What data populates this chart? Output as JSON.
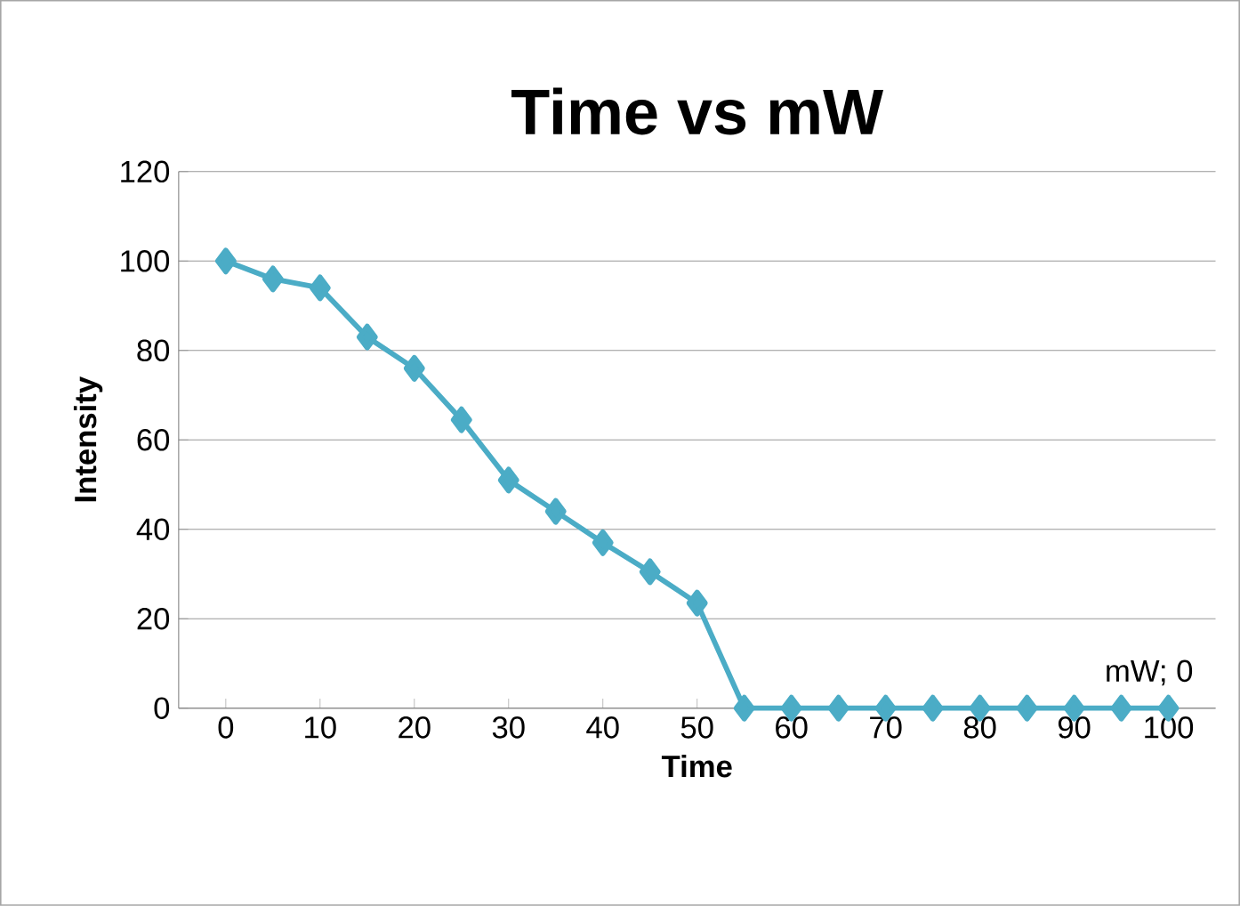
{
  "chart_data": {
    "type": "line",
    "title": "Time vs mW",
    "xlabel": "Time",
    "ylabel": "Intensity",
    "x": [
      0,
      5,
      10,
      15,
      20,
      25,
      30,
      35,
      40,
      45,
      50,
      55,
      60,
      65,
      70,
      75,
      80,
      85,
      90,
      95,
      100
    ],
    "series": [
      {
        "color": "#4bacc6",
        "values": [
          100,
          96,
          94,
          83,
          76,
          64.5,
          51,
          44,
          37,
          30.5,
          23.5,
          0,
          0,
          0,
          0,
          0,
          0,
          0,
          0,
          0,
          0
        ]
      }
    ],
    "xlim": [
      -5,
      105
    ],
    "xticks": [
      0,
      10,
      20,
      30,
      40,
      50,
      60,
      70,
      80,
      90,
      100
    ],
    "ylim": [
      0,
      120
    ],
    "yticks": [
      0,
      20,
      40,
      60,
      80,
      100,
      120
    ],
    "grid": "y",
    "marker": "diamond",
    "line_style": "solid",
    "annotations": [
      {
        "text": "mW; 0",
        "x": 100,
        "y": 0
      }
    ]
  }
}
